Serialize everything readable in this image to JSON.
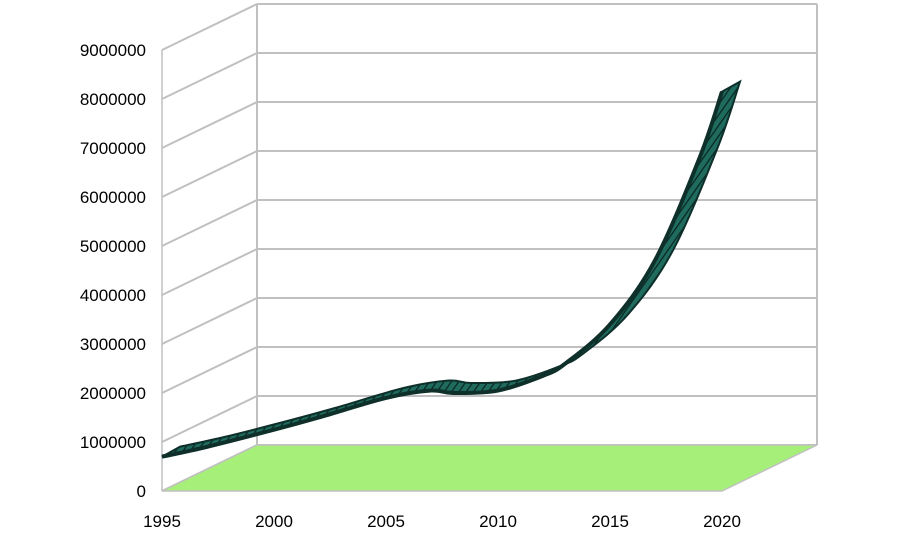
{
  "chart_data": {
    "type": "area",
    "subtype": "3d-ribbon",
    "title": "",
    "xlabel": "",
    "ylabel": "",
    "x": [
      1995,
      1997,
      2000,
      2002,
      2005,
      2007,
      2008,
      2010,
      2012,
      2013,
      2015,
      2017,
      2019,
      2020
    ],
    "series": [
      {
        "values": [
          700000,
          900000,
          1250000,
          1500000,
          1900000,
          2050000,
          2000000,
          2050000,
          2350000,
          2600000,
          3400000,
          4700000,
          6800000,
          8150000
        ]
      }
    ],
    "xlim": [
      1995,
      2020
    ],
    "ylim": [
      0,
      9000000
    ],
    "x_ticks": [
      "1995",
      "2000",
      "2005",
      "2010",
      "2015",
      "2020"
    ],
    "y_ticks": [
      "0",
      "1000000",
      "2000000",
      "3000000",
      "4000000",
      "5000000",
      "6000000",
      "7000000",
      "8000000",
      "9000000"
    ],
    "grid": true,
    "legend": "none",
    "colors": {
      "ribbon_front": "#0e2f2a",
      "ribbon_top": "#1f6b5e",
      "floor": "#a6f07a",
      "grid": "#c0c0c0"
    }
  }
}
